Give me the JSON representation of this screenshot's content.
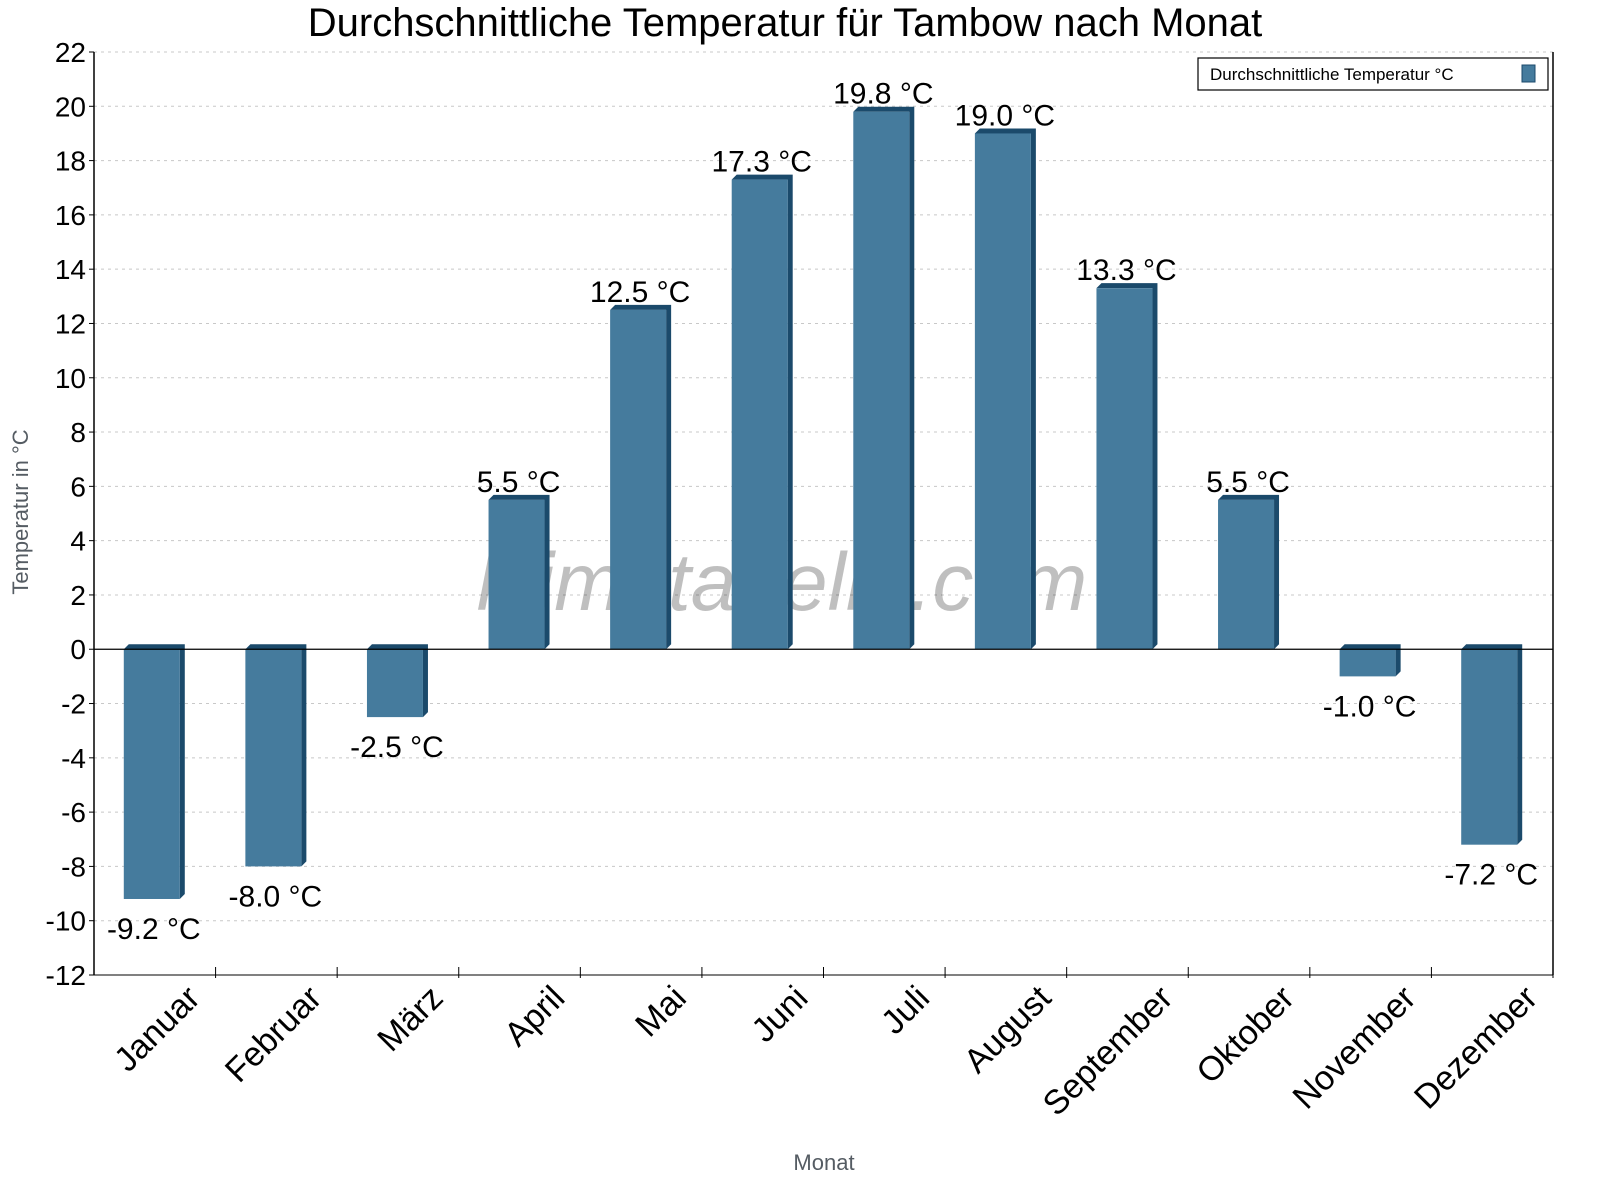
{
  "chart_data": {
    "type": "bar",
    "title": "Durchschnittliche Temperatur für Tambow nach Monat",
    "xlabel": "Monat",
    "ylabel": "Temperatur in °C",
    "ylim": [
      -12,
      22
    ],
    "yticks": [
      -12,
      -10,
      -8,
      -6,
      -4,
      -2,
      0,
      2,
      4,
      6,
      8,
      10,
      12,
      14,
      16,
      18,
      20,
      22
    ],
    "grid": true,
    "legend_position": "top-right",
    "categories": [
      "Januar",
      "Februar",
      "März",
      "April",
      "Mai",
      "Juni",
      "Juli",
      "August",
      "September",
      "Oktober",
      "November",
      "Dezember"
    ],
    "series": [
      {
        "name": "Durchschnittliche Temperatur °C",
        "color": "#457b9d",
        "side_color": "#1b4a6b",
        "values": [
          -9.2,
          -8.0,
          -2.5,
          5.5,
          12.5,
          17.3,
          19.8,
          19.0,
          13.3,
          5.5,
          -1.0,
          -7.2
        ]
      }
    ],
    "data_label_unit": "°C"
  },
  "watermark": "klimatabelle.com"
}
